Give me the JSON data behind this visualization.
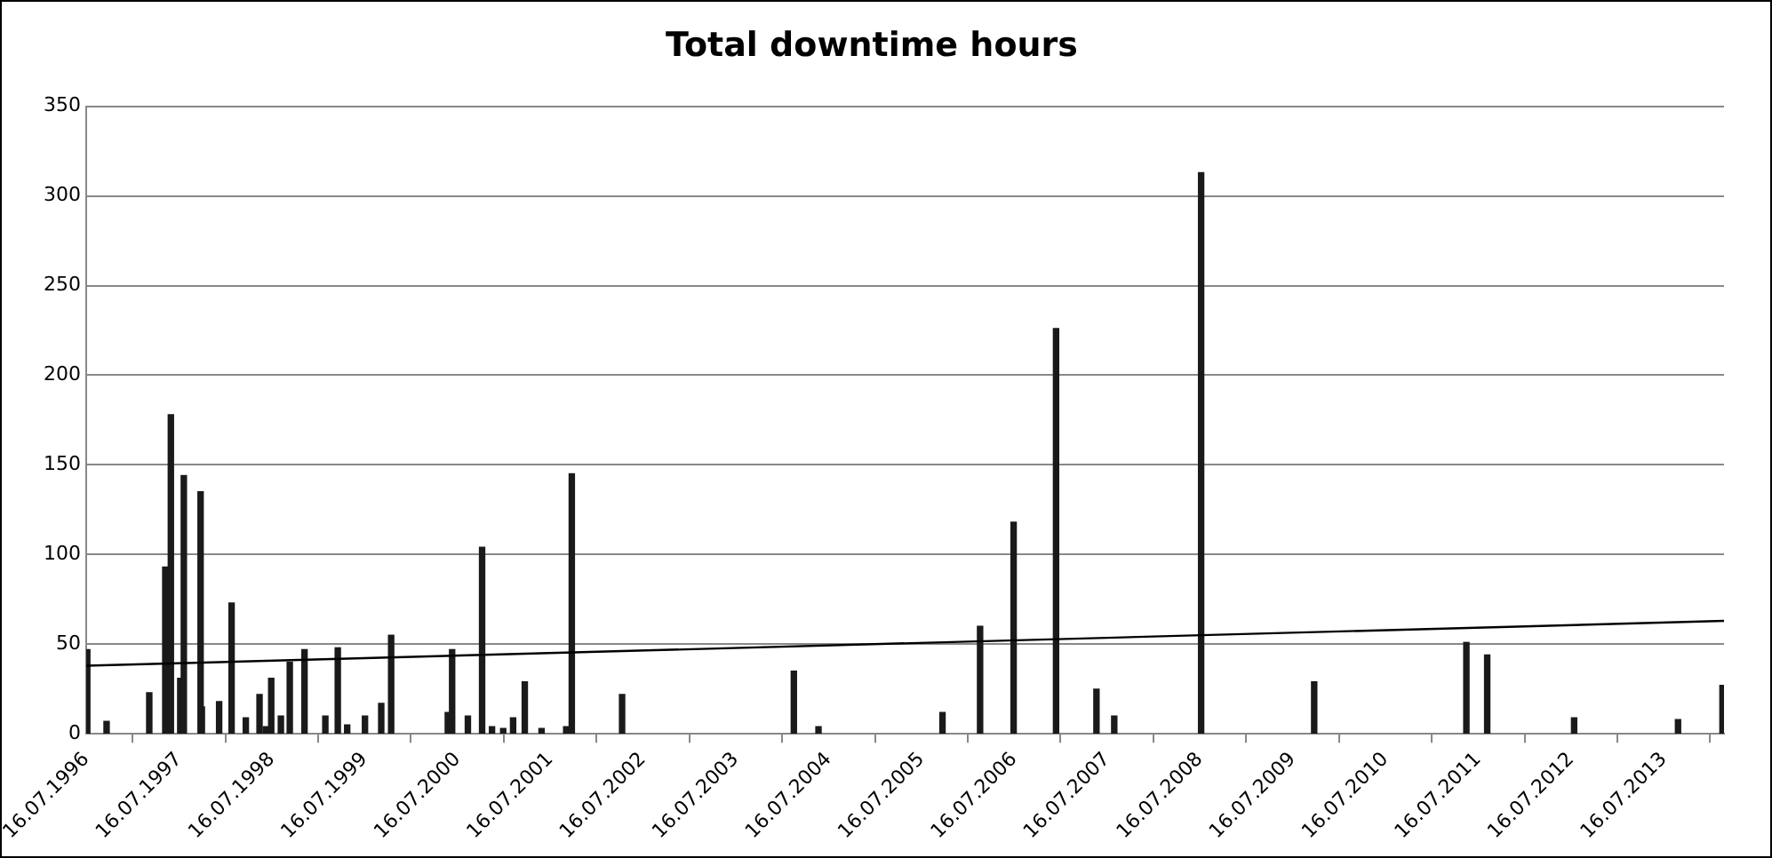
{
  "chart_data": {
    "type": "bar",
    "title": "Total downtime hours",
    "x": [
      "1996-07-20",
      "1996-10-04",
      "1997-03-21",
      "1997-05-23",
      "1997-06-14",
      "1997-07-21",
      "1997-08-04",
      "1997-10-09",
      "1997-10-14",
      "1997-12-21",
      "1998-02-08",
      "1998-04-05",
      "1998-05-19",
      "1998-05-29",
      "1998-06-23",
      "1998-07-14",
      "1998-08-21",
      "1998-09-25",
      "1998-11-22",
      "1999-02-12",
      "1999-04-02",
      "1999-05-09",
      "1999-07-18",
      "1999-09-20",
      "1999-10-29",
      "2000-06-08",
      "2000-06-25",
      "2000-08-26",
      "2000-10-21",
      "2000-11-29",
      "2001-01-12",
      "2001-02-20",
      "2001-04-07",
      "2001-06-12",
      "2001-09-17",
      "2001-10-09",
      "2002-04-25",
      "2004-03-01",
      "2004-06-06",
      "2005-10-07",
      "2006-03-04",
      "2006-07-14",
      "2006-12-28",
      "2007-06-05",
      "2007-08-14",
      "2008-07-21",
      "2009-10-09",
      "2011-05-31",
      "2011-08-21",
      "2012-07-28",
      "2013-09-10",
      "2014-03-04"
    ],
    "series": [
      {
        "color": "#1a1a1a",
        "values": [
          47,
          7,
          23,
          93,
          178,
          31,
          144,
          135,
          15,
          18,
          73,
          9,
          null,
          22,
          4,
          31,
          10,
          40,
          47,
          10,
          48,
          5,
          10,
          17,
          55,
          12,
          47,
          10,
          104,
          4,
          3,
          9,
          29,
          3,
          4,
          145,
          22,
          35,
          4,
          12,
          60,
          118,
          226,
          25,
          10,
          313,
          29,
          51,
          44,
          9,
          8,
          27
        ]
      },
      {
        "type": "line",
        "color": "#000000",
        "x": [
          "1996-07-16",
          "2014-03-10"
        ],
        "values": [
          38,
          63
        ]
      }
    ],
    "xlim": [
      "1996-07-16",
      "2014-03-10"
    ],
    "xticks": [
      {
        "value": "1996-07-16",
        "label": "16.07.1996"
      },
      {
        "value": "1997-07-16",
        "label": "16.07.1997"
      },
      {
        "value": "1998-07-16",
        "label": "16.07.1998"
      },
      {
        "value": "1999-07-16",
        "label": "16.07.1999"
      },
      {
        "value": "2000-07-16",
        "label": "16.07.2000"
      },
      {
        "value": "2001-07-16",
        "label": "16.07.2001"
      },
      {
        "value": "2002-07-16",
        "label": "16.07.2002"
      },
      {
        "value": "2003-07-16",
        "label": "16.07.2003"
      },
      {
        "value": "2004-07-16",
        "label": "16.07.2004"
      },
      {
        "value": "2005-07-16",
        "label": "16.07.2005"
      },
      {
        "value": "2006-07-16",
        "label": "16.07.2006"
      },
      {
        "value": "2007-07-16",
        "label": "16.07.2007"
      },
      {
        "value": "2008-07-16",
        "label": "16.07.2008"
      },
      {
        "value": "2009-07-16",
        "label": "16.07.2009"
      },
      {
        "value": "2010-07-16",
        "label": "16.07.2010"
      },
      {
        "value": "2011-07-16",
        "label": "16.07.2011"
      },
      {
        "value": "2012-07-16",
        "label": "16.07.2012"
      },
      {
        "value": "2013-07-16",
        "label": "16.07.2013"
      }
    ],
    "ylim": [
      0,
      350
    ],
    "yticks": [
      0,
      50,
      100,
      150,
      200,
      250,
      300,
      350
    ],
    "grid": "y",
    "legend": false
  }
}
